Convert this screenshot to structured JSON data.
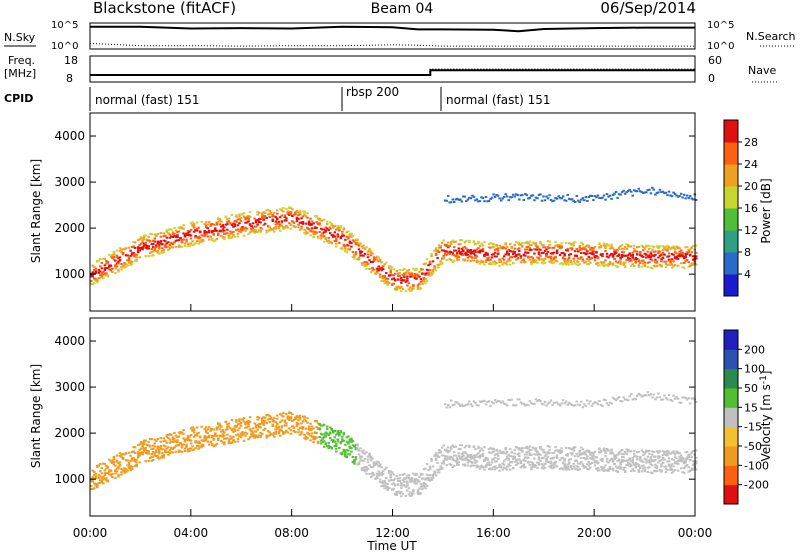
{
  "header": {
    "station": "Blackstone (fitACF)",
    "beam": "Beam 04",
    "date": "06/Sep/2014"
  },
  "chart_data": [
    {
      "type": "line",
      "panel": "noise",
      "left_label": "N.Sky",
      "right_label": "N.Search",
      "left_ticks": [
        "10^5",
        "10^0"
      ],
      "right_ticks": [
        "10^5",
        "10^0"
      ],
      "x": [
        0,
        2,
        4,
        6,
        8,
        10,
        12,
        13,
        14,
        16,
        17,
        18,
        20,
        22,
        24
      ],
      "series": [
        {
          "name": "N.Sky",
          "style": "solid",
          "values": [
            4.6,
            4.6,
            4.2,
            4.3,
            4.2,
            4.6,
            4.5,
            4.0,
            4.0,
            3.9,
            3.6,
            4.1,
            4.3,
            4.4,
            4.4
          ]
        },
        {
          "name": "N.Search",
          "style": "dotted",
          "values": [
            0.8,
            0.3,
            0.3,
            0.2,
            0.3,
            0.3,
            0.5,
            0.4,
            0.2,
            0.2,
            0.2,
            0.2,
            0.2,
            0.2,
            0.2
          ]
        }
      ]
    },
    {
      "type": "line",
      "panel": "frequency",
      "left_label": "Freq.",
      "left_unit": "[MHz]",
      "right_label": "Nave",
      "left_ticks": [
        "18",
        "8"
      ],
      "right_ticks": [
        "60",
        "0"
      ],
      "ylim_freq": [
        8,
        18
      ],
      "ylim_nave": [
        0,
        60
      ],
      "x": [
        0,
        13.5,
        13.5,
        24
      ],
      "series": [
        {
          "name": "Freq.",
          "style": "solid",
          "values": [
            10.5,
            10.5,
            12.5,
            12.5
          ]
        },
        {
          "name": "Nave",
          "style": "dotted",
          "values": [
            16,
            16,
            30,
            30
          ]
        }
      ]
    },
    {
      "type": "table",
      "panel": "cpid",
      "label": "CPID",
      "segments": [
        {
          "name": "normal (fast) 151",
          "start": 0,
          "end": 10
        },
        {
          "name": "rbsp 200",
          "start": 10,
          "end": 14
        },
        {
          "name": "normal (fast) 151",
          "start": 14,
          "end": 24
        }
      ]
    },
    {
      "type": "heatmap",
      "panel": "power",
      "ylabel": "Slant Range [km]",
      "xlim": [
        0,
        24
      ],
      "ylim": [
        200,
        4500
      ],
      "yticks": [
        "1000",
        "2000",
        "3000",
        "4000"
      ],
      "colorbar": {
        "label": "Power [dB]",
        "ticks": [
          "4",
          "8",
          "12",
          "16",
          "20",
          "24",
          "28"
        ],
        "colors": [
          "#1a1ad0",
          "#2a6ac8",
          "#2f9f86",
          "#4fbf3a",
          "#c8d430",
          "#f0a020",
          "#ff6010",
          "#e01010"
        ]
      },
      "features": [
        {
          "feature": "main band",
          "x": [
            0,
            2,
            4,
            6,
            8,
            10,
            12,
            13,
            14,
            16,
            18,
            20,
            22,
            24
          ],
          "range_km": [
            1000,
            1600,
            1900,
            2100,
            2250,
            1800,
            900,
            900,
            1550,
            1450,
            1500,
            1450,
            1400,
            1400
          ]
        },
        {
          "feature": "upper echo",
          "x": [
            14,
            17,
            20,
            22,
            24
          ],
          "range_km": [
            2650,
            2700,
            2650,
            2850,
            2700
          ]
        }
      ]
    },
    {
      "type": "heatmap",
      "panel": "velocity",
      "ylabel": "Slant Range [km]",
      "xlabel": "Time UT",
      "xlim": [
        0,
        24
      ],
      "ylim": [
        200,
        4500
      ],
      "yticks": [
        "1000",
        "2000",
        "3000",
        "4000"
      ],
      "xticks": [
        "00:00",
        "04:00",
        "08:00",
        "12:00",
        "16:00",
        "20:00",
        "00:00"
      ],
      "colorbar": {
        "label": "Velocity [m s",
        "label_sup": "-1",
        "label_end": "]",
        "ticks": [
          "-200",
          "-100",
          "-50",
          "-15",
          "15",
          "50",
          "100",
          "200"
        ],
        "colors": [
          "#e01010",
          "#ff6010",
          "#f09a20",
          "#f2c030",
          "#c0c0c0",
          "#50c030",
          "#2a8a50",
          "#2a50b0",
          "#2020c0"
        ]
      }
    }
  ]
}
